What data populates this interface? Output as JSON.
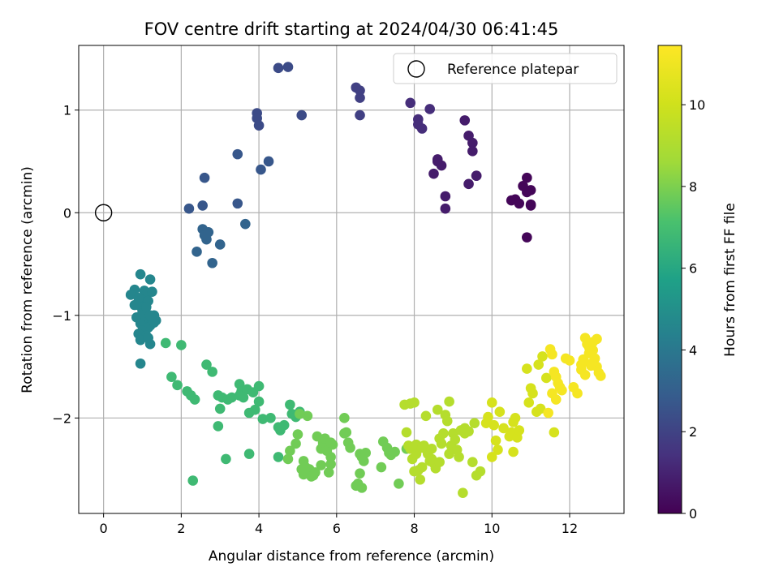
{
  "chart_data": {
    "type": "scatter",
    "title": "FOV centre drift starting at 2024/04/30 06:41:45",
    "xlabel": "Angular distance from reference (arcmin)",
    "ylabel": "Rotation from reference (arcmin)",
    "xlim": [
      -0.64,
      13.4
    ],
    "ylim": [
      -2.93,
      1.63
    ],
    "xticks": [
      0,
      2,
      4,
      6,
      8,
      10,
      12
    ],
    "yticks": [
      -2,
      -1,
      0,
      1
    ],
    "grid": true,
    "legend": {
      "position": "top-right",
      "entries": [
        "Reference platepar"
      ]
    },
    "reference_point": {
      "x": 0,
      "y": 0
    },
    "colorbar": {
      "label": "Hours from first FF file",
      "colormap": "viridis",
      "range": [
        0,
        11.45
      ],
      "ticks": [
        0,
        2,
        4,
        6,
        8,
        10
      ]
    },
    "series": [
      {
        "x": [
          10.9,
          11.0,
          11.0,
          10.8,
          10.9,
          10.6,
          10.5,
          10.7,
          11.0,
          10.9
        ],
        "y": [
          0.34,
          0.22,
          0.07,
          0.26,
          0.2,
          0.13,
          0.12,
          0.09,
          0.08,
          -0.24
        ],
        "t": 0.15
      },
      {
        "x": [
          9.3,
          9.4,
          9.5,
          9.5,
          9.6,
          9.6,
          9.4,
          8.8,
          8.6,
          8.7,
          8.5,
          8.8,
          8.6
        ],
        "y": [
          0.9,
          0.75,
          0.68,
          0.6,
          0.36,
          0.36,
          0.28,
          0.16,
          0.5,
          0.46,
          0.38,
          0.04,
          0.52
        ],
        "t": 0.8
      },
      {
        "x": [
          7.9,
          8.1,
          8.1,
          8.2,
          8.4
        ],
        "y": [
          1.07,
          0.91,
          0.86,
          0.82,
          1.01
        ],
        "t": 1.3
      },
      {
        "x": [
          6.5,
          6.6,
          6.6,
          6.6
        ],
        "y": [
          1.22,
          1.19,
          1.12,
          0.95
        ],
        "t": 1.9
      },
      {
        "x": [
          4.5,
          4.75,
          5.1,
          3.95,
          3.95,
          4.0
        ],
        "y": [
          1.41,
          1.42,
          0.95,
          0.97,
          0.92,
          0.85
        ],
        "t": 2.3
      },
      {
        "x": [
          4.05,
          4.25,
          3.45,
          2.6,
          2.55,
          2.2,
          3.45
        ],
        "y": [
          0.42,
          0.5,
          0.57,
          0.34,
          0.07,
          0.04,
          0.09
        ],
        "t": 2.7
      },
      {
        "x": [
          3.65,
          2.55,
          2.6,
          2.7,
          2.65,
          3.0,
          2.4,
          2.8
        ],
        "y": [
          -0.11,
          -0.16,
          -0.22,
          -0.19,
          -0.26,
          -0.31,
          -0.38,
          -0.49
        ],
        "t": 3.2
      },
      {
        "x": [
          0.95,
          1.2,
          0.8,
          0.7,
          1.05,
          1.1,
          1.25,
          1.0,
          1.15,
          0.9,
          1.0,
          1.3,
          0.85,
          1.1,
          1.05,
          1.35,
          0.8,
          0.95,
          1.2,
          1.15,
          1.0,
          1.25,
          0.9,
          1.1,
          1.05,
          1.3,
          1.2,
          0.95,
          1.0,
          1.1,
          0.9,
          1.15,
          1.2,
          0.95
        ],
        "y": [
          -0.6,
          -0.65,
          -0.75,
          -0.8,
          -0.76,
          -0.8,
          -0.77,
          -0.85,
          -0.86,
          -0.9,
          -0.95,
          -1.0,
          -1.02,
          -1.04,
          -0.95,
          -1.05,
          -0.9,
          -1.08,
          -1.1,
          -1.12,
          -1.15,
          -1.05,
          -1.18,
          -1.2,
          -1.0,
          -1.07,
          -1.28,
          -1.24,
          -0.98,
          -0.92,
          -0.83,
          -1.22,
          -1.0,
          -1.47
        ],
        "t": 4.6
      },
      {
        "x": [
          1.6,
          2.0,
          1.75,
          1.9,
          2.15,
          2.25,
          2.35,
          2.65,
          2.8,
          2.95,
          3.05,
          3.2,
          3.3,
          3.5,
          3.55,
          3.7,
          3.85,
          3.9,
          4.0,
          3.5,
          3.6,
          3.75,
          3.0,
          3.15,
          2.95,
          2.3,
          4.0,
          4.1,
          4.3,
          4.5,
          4.55,
          4.65,
          4.8,
          4.85,
          4.95,
          5.05,
          3.75,
          4.5
        ],
        "y": [
          -1.27,
          -1.29,
          -1.6,
          -1.68,
          -1.74,
          -1.78,
          -1.82,
          -1.48,
          -1.55,
          -1.78,
          -1.8,
          -1.82,
          -1.8,
          -1.67,
          -1.74,
          -1.72,
          -1.75,
          -1.92,
          -1.69,
          -1.78,
          -1.8,
          -1.95,
          -1.91,
          -2.4,
          -2.08,
          -2.61,
          -1.84,
          -2.01,
          -2.0,
          -2.09,
          -2.12,
          -2.07,
          -1.87,
          -1.96,
          -1.99,
          -1.94,
          -2.35,
          -2.38
        ],
        "t": 6.8
      },
      {
        "x": [
          5.25,
          5.5,
          5.6,
          5.65,
          5.7,
          5.75,
          5.85,
          5.9,
          5.0,
          4.95,
          4.8,
          4.75,
          5.1,
          5.15,
          5.3,
          5.4,
          5.6,
          5.8,
          5.85,
          6.2,
          6.25,
          6.3,
          6.35,
          6.5,
          6.55,
          6.6,
          6.65,
          6.7,
          6.6,
          6.65,
          6.75,
          7.15,
          7.2,
          7.3,
          7.35,
          7.4,
          7.5,
          7.6,
          7.8,
          5.05,
          5.15,
          5.2,
          5.35,
          5.45,
          5.85,
          6.2
        ],
        "y": [
          -1.98,
          -2.18,
          -2.3,
          -2.24,
          -2.2,
          -2.32,
          -2.38,
          -2.26,
          -2.16,
          -2.25,
          -2.32,
          -2.4,
          -2.5,
          -2.55,
          -2.5,
          -2.56,
          -2.46,
          -2.53,
          -2.45,
          -2.0,
          -2.14,
          -2.24,
          -2.29,
          -2.66,
          -2.64,
          -2.54,
          -2.68,
          -2.42,
          -2.35,
          -2.38,
          -2.34,
          -2.48,
          -2.23,
          -2.29,
          -2.34,
          -2.36,
          -2.33,
          -2.64,
          -2.3,
          -1.96,
          -2.42,
          -2.48,
          -2.57,
          -2.53,
          -2.24,
          -2.15
        ],
        "t": 7.8
      },
      {
        "x": [
          7.75,
          7.8,
          7.85,
          7.9,
          7.95,
          8.0,
          8.05,
          8.1,
          8.15,
          8.2,
          8.25,
          8.3,
          8.35,
          8.4,
          8.45,
          8.5,
          8.55,
          8.6,
          8.65,
          8.7,
          8.75,
          8.8,
          8.85,
          8.9,
          8.95,
          9.0,
          9.05,
          9.1,
          9.15,
          9.2,
          9.25,
          9.3,
          9.4,
          9.5,
          9.6,
          9.7,
          7.9,
          8.05,
          8.2,
          8.1,
          8.65,
          8.9,
          9.3,
          9.55,
          8.0,
          8.45
        ],
        "y": [
          -1.87,
          -2.14,
          -2.27,
          -2.3,
          -2.4,
          -2.52,
          -2.35,
          -2.28,
          -2.6,
          -2.48,
          -2.27,
          -1.98,
          -2.35,
          -2.42,
          -2.4,
          -2.44,
          -2.49,
          -1.92,
          -2.2,
          -2.25,
          -2.15,
          -1.97,
          -2.03,
          -1.84,
          -2.27,
          -2.15,
          -2.21,
          -2.31,
          -2.38,
          -2.12,
          -2.73,
          -2.15,
          -2.13,
          -2.43,
          -2.56,
          -2.52,
          -1.86,
          -2.26,
          -2.29,
          -2.51,
          -2.43,
          -2.35,
          -2.1,
          -2.05,
          -1.85,
          -2.3
        ],
        "t": 9.2
      },
      {
        "x": [
          9.9,
          10.0,
          10.05,
          10.1,
          10.15,
          10.2,
          10.3,
          10.45,
          10.5,
          10.55,
          10.6,
          10.65,
          10.9,
          11.0,
          11.05,
          11.2,
          11.3,
          11.4,
          9.85,
          10.0,
          10.55,
          10.7,
          11.15,
          11.6,
          10.95,
          11.25
        ],
        "y": [
          -1.99,
          -1.85,
          -2.07,
          -2.22,
          -2.31,
          -1.94,
          -2.1,
          -2.18,
          -2.14,
          -2.04,
          -2.0,
          -2.19,
          -1.52,
          -1.71,
          -1.76,
          -1.48,
          -1.4,
          -1.61,
          -2.05,
          -2.38,
          -2.33,
          -2.12,
          -1.94,
          -2.14,
          -1.85,
          -1.91
        ],
        "t": 10.2
      },
      {
        "x": [
          11.5,
          11.55,
          11.6,
          11.65,
          11.7,
          11.75,
          11.8,
          11.9,
          12.0,
          12.1,
          12.2,
          12.3,
          12.35,
          12.4,
          12.45,
          12.5,
          12.55,
          12.6,
          12.65,
          12.7,
          12.75,
          12.8,
          11.55,
          11.65,
          12.3,
          12.4,
          12.5,
          12.6,
          12.7,
          11.45,
          12.55
        ],
        "y": [
          -1.33,
          -1.38,
          -1.55,
          -1.6,
          -1.66,
          -1.7,
          -1.73,
          -1.42,
          -1.44,
          -1.7,
          -1.76,
          -1.48,
          -1.43,
          -1.22,
          -1.28,
          -1.37,
          -1.49,
          -1.34,
          -1.42,
          -1.5,
          -1.56,
          -1.59,
          -1.76,
          -1.82,
          -1.53,
          -1.58,
          -1.31,
          -1.26,
          -1.23,
          -1.95,
          -1.47
        ],
        "t": 11.2
      }
    ]
  }
}
